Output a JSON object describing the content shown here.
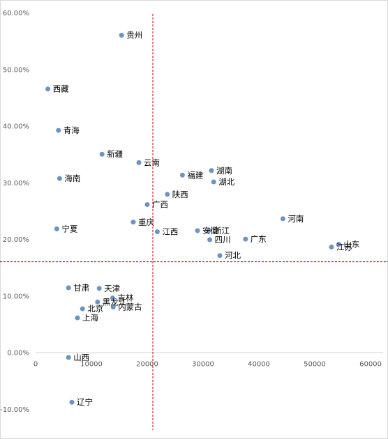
{
  "chart_data": {
    "type": "scatter",
    "title": "",
    "xlabel": "",
    "ylabel": "",
    "xlim": [
      0,
      60000
    ],
    "ylim": [
      -0.1,
      0.6
    ],
    "x_ticks": [
      0,
      10000,
      20000,
      30000,
      40000,
      50000,
      60000
    ],
    "x_tick_labels": [
      "0",
      "10000",
      "20000",
      "30000",
      "40000",
      "50000",
      "60000"
    ],
    "y_ticks": [
      0.6,
      0.5,
      0.4,
      0.3,
      0.2,
      0.1,
      0.0,
      -0.1
    ],
    "y_tick_labels": [
      "60.00%",
      "50.00%",
      "40.00%",
      "30.00%",
      "20.00%",
      "10.00%",
      "0.00%",
      "-10.00%"
    ],
    "reference_lines": {
      "x": 21000,
      "y": 0.16,
      "color": "#c00000",
      "style": "dashed"
    },
    "marker_color": "#6b94c2",
    "grid": false,
    "legend": "none",
    "points": [
      {
        "name": "贵州",
        "x": 15400,
        "y": 0.56
      },
      {
        "name": "西藏",
        "x": 2200,
        "y": 0.465
      },
      {
        "name": "青海",
        "x": 4100,
        "y": 0.392
      },
      {
        "name": "新疆",
        "x": 11900,
        "y": 0.35
      },
      {
        "name": "云南",
        "x": 18500,
        "y": 0.335
      },
      {
        "name": "福建",
        "x": 26300,
        "y": 0.313
      },
      {
        "name": "湖南",
        "x": 31500,
        "y": 0.321
      },
      {
        "name": "湖北",
        "x": 31900,
        "y": 0.301
      },
      {
        "name": "海南",
        "x": 4300,
        "y": 0.307
      },
      {
        "name": "陕西",
        "x": 23600,
        "y": 0.279
      },
      {
        "name": "广西",
        "x": 20000,
        "y": 0.261
      },
      {
        "name": "重庆",
        "x": 17500,
        "y": 0.23
      },
      {
        "name": "江西",
        "x": 21800,
        "y": 0.213
      },
      {
        "name": "安徽",
        "x": 29000,
        "y": 0.215
      },
      {
        "name": "浙江",
        "x": 31000,
        "y": 0.215
      },
      {
        "name": "四川",
        "x": 31200,
        "y": 0.199
      },
      {
        "name": "广东",
        "x": 37600,
        "y": 0.2
      },
      {
        "name": "河南",
        "x": 44300,
        "y": 0.236
      },
      {
        "name": "宁夏",
        "x": 3800,
        "y": 0.218
      },
      {
        "name": "河北",
        "x": 33000,
        "y": 0.171
      },
      {
        "name": "山东",
        "x": 54300,
        "y": 0.191
      },
      {
        "name": "江苏",
        "x": 53000,
        "y": 0.186
      },
      {
        "name": "甘肃",
        "x": 5900,
        "y": 0.114
      },
      {
        "name": "天津",
        "x": 11400,
        "y": 0.113
      },
      {
        "name": "吉林",
        "x": 13800,
        "y": 0.096
      },
      {
        "name": "黑龙江",
        "x": 11100,
        "y": 0.089
      },
      {
        "name": "内蒙古",
        "x": 13900,
        "y": 0.08
      },
      {
        "name": "北京",
        "x": 8400,
        "y": 0.077
      },
      {
        "name": "上海",
        "x": 7500,
        "y": 0.061
      },
      {
        "name": "山西",
        "x": 5900,
        "y": -0.009
      },
      {
        "name": "辽宁",
        "x": 6500,
        "y": -0.088
      }
    ]
  }
}
